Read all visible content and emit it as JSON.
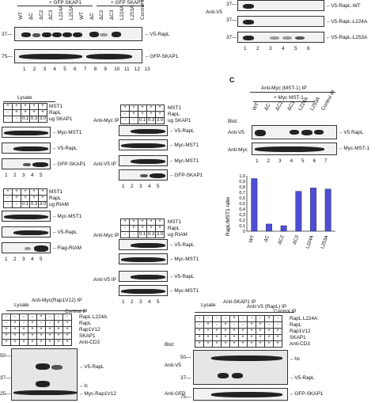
{
  "panelA": {
    "header_left": "+ GFP SKAP1",
    "header_right": "+ GFP SKAP1",
    "lanes": [
      "WT",
      "ΔC",
      "ΔC2",
      "ΔC3",
      "L224A",
      "L253A",
      "WT",
      "ΔC",
      "ΔC2",
      "ΔC3",
      "L224A",
      "L253A",
      "Control IP"
    ],
    "lane_numbers": [
      "1",
      "2",
      "3",
      "4",
      "5",
      "6",
      "7",
      "8",
      "9",
      "10",
      "11",
      "12",
      "13"
    ],
    "mw": [
      "37—",
      "75—"
    ],
    "labels": [
      "V5-RapL",
      "GFP-SKAP1"
    ]
  },
  "panelB": {
    "anti": "Anti-V5",
    "mw": [
      "37—",
      "37—",
      "37—"
    ],
    "labels": [
      "V5-RapL-WT",
      "V5-RapL-L224A",
      "V5-RapL-L253A"
    ],
    "lane_numbers": [
      "1",
      "2",
      "3",
      "4",
      "5",
      "6"
    ]
  },
  "panelMid": {
    "lysate": "Lysate",
    "rows1": [
      "MST1",
      "RapL",
      "ug SKAP1"
    ],
    "vals1": [
      "+",
      "+",
      "+",
      "+",
      "+",
      "-",
      "+",
      "+",
      "+",
      "+",
      "-",
      "-",
      "0.1",
      "0.3",
      "3.0"
    ],
    "lysate_labels": [
      "Myc-MST1",
      "V5-RapL",
      "GFP-SKAP1"
    ],
    "lane_numbers1": [
      "1",
      "2",
      "3",
      "4",
      "5"
    ],
    "rows2": [
      "MST1",
      "RapL",
      "ug RIAM"
    ],
    "lysate_labels2": [
      "Myc-MST1",
      "V5-RapL",
      "Flag-RIAM"
    ],
    "lane_numbers2": [
      "1",
      "2",
      "3",
      "4",
      "5"
    ],
    "ip_myc": "Anti-Myc IP",
    "ip_v5": "Anti-V5 IP",
    "ip_labels1": [
      "V5-RapL",
      "Myc-MST1",
      "Myc-MST1",
      "GFP-SKAP1"
    ],
    "ip_labels2": [
      "V5-RapL",
      "Myc-MST1",
      "V5-RapL",
      "Myc-MST1"
    ],
    "ip_rows1": [
      "MST1",
      "RapL",
      "ug SKAP1"
    ],
    "ip_rows2": [
      "MST1",
      "RapL",
      "ug RIAM"
    ],
    "amounts": [
      "0.1",
      "0.3",
      "3.0"
    ]
  },
  "panelC": {
    "letter": "C",
    "ip": "Anti-Myc (MST-1) IP",
    "sub": "+ Myc MST-1",
    "lanes": [
      "WT",
      "ΔC",
      "ΔC2",
      "ΔC3",
      "L224A",
      "L253A",
      "Control IP"
    ],
    "blot": "Blot:",
    "anti_v5": "Anti-V5",
    "anti_myc": "Anti-Myc",
    "labels": [
      "V5 RapL",
      "Myc-MST-1"
    ],
    "lane_numbers": [
      "1",
      "2",
      "3",
      "4",
      "5",
      "6",
      "7"
    ],
    "ylabel": "RapL/MST1 ratio"
  },
  "chart_data": {
    "type": "bar",
    "categories": [
      "WT",
      "ΔC",
      "ΔC2",
      "ΔC3",
      "L224A",
      "L253A"
    ],
    "values": [
      0.95,
      0.13,
      0.1,
      0.72,
      0.78,
      0.76
    ],
    "ylabel": "RapL/MST1 ratio",
    "ylim": [
      0,
      1.0
    ],
    "yticks": [
      "1,0",
      "0,9",
      "0,8",
      "0,7",
      "0,6",
      "0,5",
      "0,4",
      "0,3",
      "0,2",
      "0,1",
      "0"
    ],
    "color": "#4d4dd6"
  },
  "panelD": {
    "lysate": "Lysate",
    "ip": "Anti-Myc(Rap1V12) IP",
    "control": "Control IP",
    "rows": [
      "RapL L224A",
      "RapL",
      "Rap1V12",
      "SKAP1",
      "Anti-CD3"
    ],
    "mw": [
      "50—",
      "37—",
      "25—"
    ],
    "labels": [
      "V5-RapL",
      "lc",
      "Myc-Rap1V12"
    ]
  },
  "panelE": {
    "lysate": "Lysate",
    "ip1": "Anti-SKAP1 IP",
    "ip2": "Anti-V5 (RapL) IP",
    "control": "Control IP",
    "rows": [
      "RapL L224A",
      "RapL",
      "Rap1V12",
      "SKAP1",
      "Anti-CD3"
    ],
    "blot": "Blot:",
    "anti_v5": "Anti-V5",
    "anti_gfp": "Anti-GFP",
    "mw": [
      "50—",
      "37—",
      "75—"
    ],
    "labels": [
      "hc",
      "V5-RapL",
      "GFP-SKAP1"
    ]
  }
}
